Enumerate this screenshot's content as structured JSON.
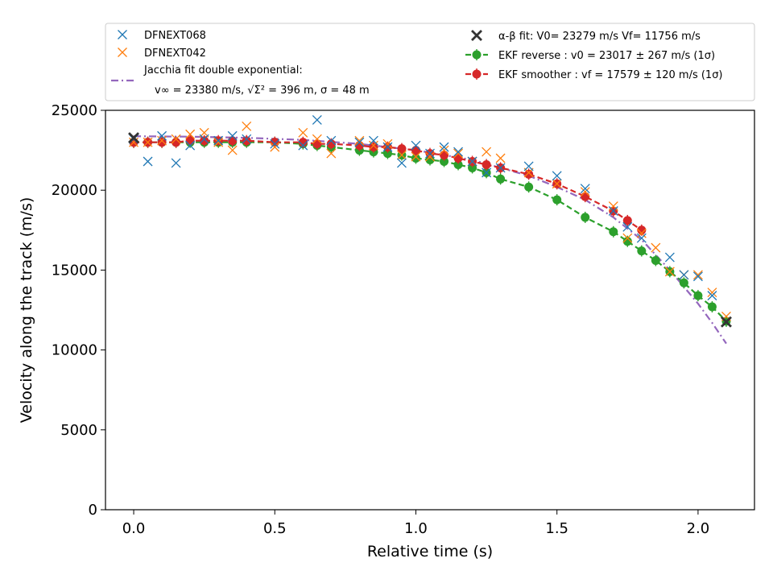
{
  "chart_data": {
    "type": "scatter",
    "xlabel": "Relative time (s)",
    "ylabel": "Velocity along the track (m/s)",
    "xlim": [
      -0.1,
      2.2
    ],
    "ylim": [
      0,
      25000
    ],
    "xticks": [
      0.0,
      0.5,
      1.0,
      1.5,
      2.0
    ],
    "xtick_labels": [
      "0.0",
      "0.5",
      "1.0",
      "1.5",
      "2.0"
    ],
    "yticks": [
      0,
      5000,
      10000,
      15000,
      20000,
      25000
    ],
    "ytick_labels": [
      "0",
      "5000",
      "10000",
      "15000",
      "20000",
      "25000"
    ],
    "grid": false,
    "legend_placement": "above plot",
    "legend": {
      "dfn068": "DFNEXT068",
      "dfn042": "DFNEXT042",
      "jacchia_line1": "Jacchia fit double exponential:",
      "jacchia_line2": "v∞ = 23380 m/s, √Σ² = 396 m, σ = 48 m",
      "ab": "α-β fit: V0= 23279 m/s   Vf= 11756 m/s",
      "ekf_reverse": "EKF reverse : v0 =  23017 ± 267 m/s (1σ)",
      "ekf_smoother": "EKF smoother : vf =  17579 ± 120 m/s (1σ)"
    },
    "colors": {
      "dfn068": "#1f77b4",
      "dfn042": "#ff7f0e",
      "jacchia": "#9467bd",
      "ab": "#333333",
      "ekf_reverse": "#2ca02c",
      "ekf_smoother": "#d62728"
    },
    "series": [
      {
        "key": "dfn068",
        "name": "DFNEXT068",
        "marker": "x",
        "x": [
          0.0,
          0.05,
          0.1,
          0.15,
          0.2,
          0.25,
          0.3,
          0.35,
          0.4,
          0.5,
          0.6,
          0.65,
          0.7,
          0.8,
          0.85,
          0.9,
          0.95,
          1.0,
          1.05,
          1.1,
          1.15,
          1.2,
          1.25,
          1.3,
          1.4,
          1.5,
          1.6,
          1.7,
          1.75,
          1.8,
          1.9,
          1.95,
          2.0,
          2.05
        ],
        "y": [
          23200,
          21800,
          23400,
          21700,
          22800,
          23200,
          23100,
          23400,
          23200,
          22900,
          22800,
          24400,
          23100,
          23000,
          23100,
          22700,
          21700,
          22800,
          22300,
          22700,
          22400,
          21800,
          21100,
          21400,
          21500,
          20900,
          20100,
          18700,
          17700,
          17000,
          15800,
          14700,
          14600,
          13400
        ]
      },
      {
        "key": "dfn042",
        "name": "DFNEXT042",
        "marker": "x",
        "x": [
          0.0,
          0.05,
          0.1,
          0.15,
          0.2,
          0.25,
          0.3,
          0.35,
          0.4,
          0.5,
          0.6,
          0.65,
          0.7,
          0.8,
          0.85,
          0.9,
          0.95,
          1.0,
          1.05,
          1.1,
          1.15,
          1.2,
          1.25,
          1.3,
          1.4,
          1.5,
          1.6,
          1.7,
          1.75,
          1.8,
          1.85,
          1.9,
          1.95,
          2.0,
          2.05,
          2.1
        ],
        "y": [
          23000,
          23000,
          23100,
          23200,
          23500,
          23600,
          23000,
          22500,
          24000,
          22700,
          23600,
          23200,
          22300,
          23100,
          22800,
          22900,
          22200,
          22100,
          22100,
          22500,
          22300,
          21800,
          22400,
          22000,
          21100,
          20400,
          19900,
          19000,
          17000,
          17300,
          16400,
          14900,
          14700,
          14700,
          13600,
          12100
        ]
      },
      {
        "key": "ekf_reverse",
        "name": "EKF reverse",
        "marker": "o",
        "dashed": true,
        "x": [
          0.0,
          0.05,
          0.1,
          0.15,
          0.2,
          0.25,
          0.3,
          0.35,
          0.4,
          0.5,
          0.6,
          0.65,
          0.7,
          0.8,
          0.85,
          0.9,
          0.95,
          1.0,
          1.05,
          1.1,
          1.15,
          1.2,
          1.25,
          1.3,
          1.4,
          1.5,
          1.6,
          1.7,
          1.75,
          1.8,
          1.85,
          1.9,
          1.95,
          2.0,
          2.05,
          2.1
        ],
        "y": [
          23000,
          23000,
          23000,
          23000,
          23000,
          23000,
          23000,
          23000,
          23000,
          23000,
          22900,
          22800,
          22700,
          22500,
          22400,
          22300,
          22200,
          22000,
          21900,
          21800,
          21600,
          21400,
          21100,
          20700,
          20200,
          19400,
          18300,
          17400,
          16800,
          16200,
          15600,
          14900,
          14200,
          13400,
          12700,
          11800
        ]
      },
      {
        "key": "ekf_smoother",
        "name": "EKF smoother",
        "marker": "o",
        "dashed": true,
        "x": [
          0.0,
          0.05,
          0.1,
          0.15,
          0.2,
          0.25,
          0.3,
          0.35,
          0.4,
          0.5,
          0.6,
          0.65,
          0.7,
          0.8,
          0.85,
          0.9,
          0.95,
          1.0,
          1.05,
          1.1,
          1.15,
          1.2,
          1.25,
          1.3,
          1.4,
          1.5,
          1.6,
          1.7,
          1.75,
          1.8
        ],
        "y": [
          23000,
          23000,
          23000,
          23000,
          23100,
          23100,
          23100,
          23100,
          23100,
          23000,
          23000,
          22900,
          22900,
          22800,
          22700,
          22700,
          22600,
          22500,
          22300,
          22200,
          22000,
          21800,
          21600,
          21400,
          21000,
          20400,
          19600,
          18700,
          18100,
          17500
        ]
      },
      {
        "key": "jacchia",
        "name": "Jacchia fit double exponential",
        "marker": "none",
        "dashdot": true,
        "x": [
          0.0,
          0.2,
          0.4,
          0.6,
          0.8,
          1.0,
          1.1,
          1.2,
          1.3,
          1.4,
          1.5,
          1.6,
          1.7,
          1.8,
          1.9,
          2.0,
          2.05,
          2.1
        ],
        "y": [
          23380,
          23350,
          23280,
          23150,
          22900,
          22500,
          22200,
          21900,
          21400,
          20900,
          20200,
          19400,
          18300,
          16900,
          15000,
          12900,
          11700,
          10400
        ]
      },
      {
        "key": "ab",
        "name": "α-β fit",
        "marker": "X",
        "x": [
          0.0,
          2.1
        ],
        "y": [
          23279,
          11756
        ]
      }
    ]
  }
}
